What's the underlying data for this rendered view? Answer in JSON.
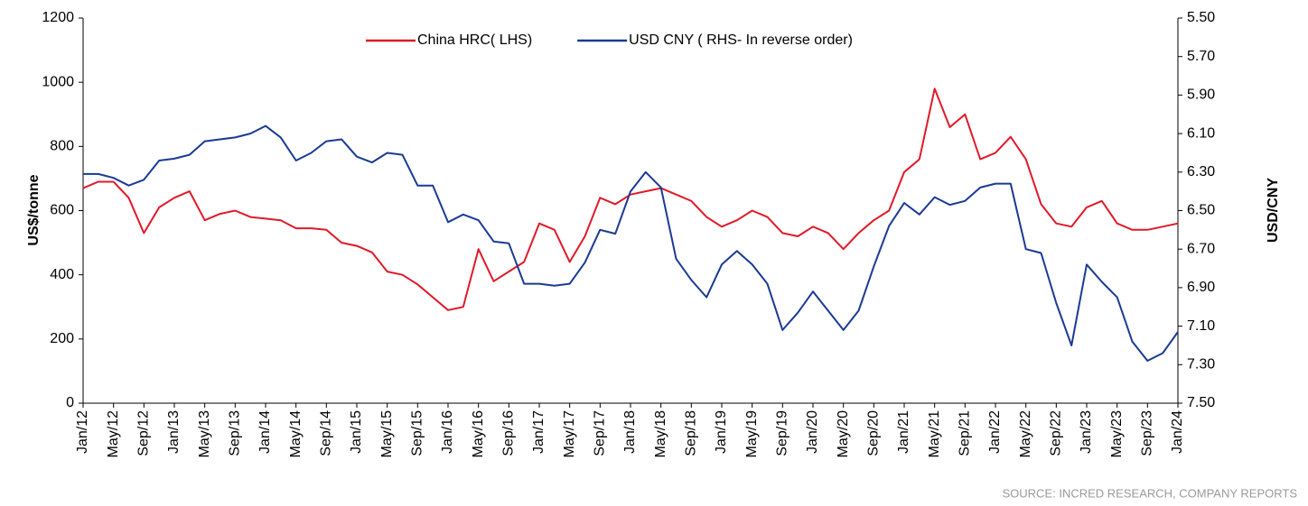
{
  "chart_data": {
    "type": "line",
    "y_label": "US$/tonne",
    "y2_label": "USD/CNY",
    "source": "SOURCE: INCRED RESEARCH, COMPANY REPORTS",
    "categories": [
      "Jan/12",
      null,
      "May/12",
      null,
      "Sep/12",
      null,
      "Jan/13",
      null,
      "May/13",
      null,
      "Sep/13",
      null,
      "Jan/14",
      null,
      "May/14",
      null,
      "Sep/14",
      null,
      "Jan/15",
      null,
      "May/15",
      null,
      "Sep/15",
      null,
      "Jan/16",
      null,
      "May/16",
      null,
      "Sep/16",
      null,
      "Jan/17",
      null,
      "May/17",
      null,
      "Sep/17",
      null,
      "Jan/18",
      null,
      "May/18",
      null,
      "Sep/18",
      null,
      "Jan/19",
      null,
      "May/19",
      null,
      "Sep/19",
      null,
      "Jan/20",
      null,
      "May/20",
      null,
      "Sep/20",
      null,
      "Jan/21",
      null,
      "May/21",
      null,
      "Sep/21",
      null,
      "Jan/22",
      null,
      "May/22",
      null,
      "Sep/22",
      null,
      "Jan/23",
      null,
      "May/23",
      null,
      "Sep/23",
      null,
      "Jan/24"
    ],
    "series": [
      {
        "name": "China HRC( LHS)",
        "color": "#e0192a",
        "axis": "y",
        "values": [
          670,
          690,
          690,
          640,
          530,
          610,
          640,
          660,
          570,
          590,
          600,
          580,
          575,
          570,
          545,
          545,
          540,
          500,
          490,
          470,
          410,
          400,
          370,
          330,
          290,
          300,
          480,
          380,
          410,
          440,
          560,
          540,
          440,
          520,
          640,
          620,
          650,
          660,
          670,
          650,
          630,
          580,
          550,
          570,
          600,
          580,
          530,
          520,
          550,
          530,
          480,
          530,
          570,
          600,
          720,
          760,
          980,
          860,
          900,
          760,
          780,
          830,
          760,
          620,
          560,
          550,
          610,
          630,
          560,
          540,
          540,
          550,
          560
        ]
      },
      {
        "name": "USD CNY ( RHS- In reverse order)",
        "color": "#1a3a94",
        "axis": "y2",
        "values": [
          6.31,
          6.31,
          6.33,
          6.37,
          6.34,
          6.24,
          6.23,
          6.21,
          6.14,
          6.13,
          6.12,
          6.1,
          6.06,
          6.12,
          6.24,
          6.2,
          6.14,
          6.13,
          6.22,
          6.25,
          6.2,
          6.21,
          6.37,
          6.37,
          6.56,
          6.52,
          6.55,
          6.66,
          6.67,
          6.88,
          6.88,
          6.89,
          6.88,
          6.77,
          6.6,
          6.62,
          6.4,
          6.3,
          6.38,
          6.75,
          6.86,
          6.95,
          6.78,
          6.71,
          6.78,
          6.88,
          7.12,
          7.03,
          6.92,
          7.02,
          7.12,
          7.02,
          6.79,
          6.58,
          6.46,
          6.52,
          6.43,
          6.47,
          6.45,
          6.38,
          6.36,
          6.36,
          6.7,
          6.72,
          6.98,
          7.2,
          6.78,
          6.87,
          6.95,
          7.18,
          7.28,
          7.24,
          7.13
        ]
      }
    ],
    "ylim": [
      0,
      1200
    ],
    "yticks": [
      0,
      200,
      400,
      600,
      800,
      1000,
      1200
    ],
    "y2lim": [
      7.5,
      5.5
    ],
    "y2ticks": [
      {
        "value": 5.5,
        "label": "5.50"
      },
      {
        "value": 5.7,
        "label": "5.70"
      },
      {
        "value": 5.9,
        "label": "5.90"
      },
      {
        "value": 6.1,
        "label": "6.10"
      },
      {
        "value": 6.3,
        "label": "6.30"
      },
      {
        "value": 6.5,
        "label": "6.50"
      },
      {
        "value": 6.7,
        "label": "6.70"
      },
      {
        "value": 6.9,
        "label": "6.90"
      },
      {
        "value": 7.1,
        "label": "7.10"
      },
      {
        "value": 7.3,
        "label": "7.30"
      },
      {
        "value": 7.5,
        "label": "7.50"
      }
    ],
    "grid": false,
    "legend": "top"
  }
}
